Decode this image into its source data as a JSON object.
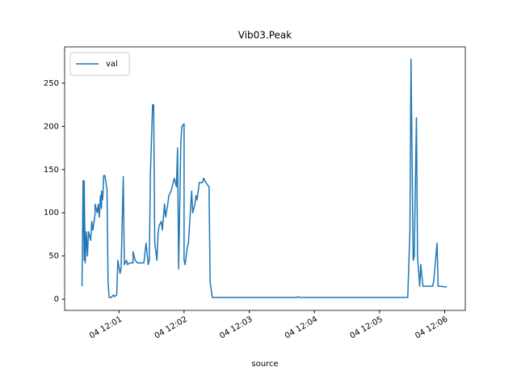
{
  "chart_data": {
    "type": "line",
    "title": "Vib03.Peak",
    "x_label": "source",
    "xlim": [
      "04 12:00:10",
      "04 12:06:19"
    ],
    "xticks": [
      "04 12:01",
      "04 12:02",
      "04 12:03",
      "04 12:04",
      "04 12:05",
      "04 12:06"
    ],
    "ylim": [
      -13,
      292
    ],
    "yticks": [
      0,
      50,
      100,
      150,
      200,
      250
    ],
    "legend": "upper left",
    "x": [
      "04 12:00:26",
      "04 12:00:27",
      "04 12:00:28",
      "04 12:00:28",
      "04 12:00:29",
      "04 12:00:30",
      "04 12:00:31",
      "04 12:00:32",
      "04 12:00:34",
      "04 12:00:35",
      "04 12:00:36",
      "04 12:00:38",
      "04 12:00:38",
      "04 12:00:40",
      "04 12:00:41",
      "04 12:00:42",
      "04 12:00:43",
      "04 12:00:44",
      "04 12:00:44",
      "04 12:00:45",
      "04 12:00:46",
      "04 12:00:47",
      "04 12:00:49",
      "04 12:00:50",
      "04 12:00:51",
      "04 12:00:53",
      "04 12:00:55",
      "04 12:00:56",
      "04 12:00:58",
      "04 12:00:59",
      "04 12:01:01",
      "04 12:01:02",
      "04 12:01:04",
      "04 12:01:05",
      "04 12:01:07",
      "04 12:01:08",
      "04 12:01:10",
      "04 12:01:13",
      "04 12:01:13",
      "04 12:01:15",
      "04 12:01:17",
      "04 12:01:23",
      "04 12:01:25",
      "04 12:01:27",
      "04 12:01:28",
      "04 12:01:29",
      "04 12:01:31",
      "04 12:01:32",
      "04 12:01:33",
      "04 12:01:35",
      "04 12:01:36",
      "04 12:01:37",
      "04 12:01:39",
      "04 12:01:40",
      "04 12:01:42",
      "04 12:01:43",
      "04 12:01:45",
      "04 12:01:46",
      "04 12:01:48",
      "04 12:01:50",
      "04 12:01:51",
      "04 12:01:53",
      "04 12:01:54",
      "04 12:01:55",
      "04 12:01:57",
      "04 12:01:58",
      "04 12:02:00",
      "04 12:02:00",
      "04 12:02:01",
      "04 12:02:03",
      "04 12:02:04",
      "04 12:02:06",
      "04 12:02:07",
      "04 12:02:08",
      "04 12:02:10",
      "04 12:02:11",
      "04 12:02:12",
      "04 12:02:14",
      "04 12:02:17",
      "04 12:02:18",
      "04 12:02:20",
      "04 12:02:23",
      "04 12:02:24",
      "04 12:02:26",
      "04 12:02:28",
      "04 12:02:54",
      "04 12:03:31",
      "04 12:03:44",
      "04 12:03:45",
      "04 12:03:46",
      "04 12:04:08",
      "04 12:04:46",
      "04 12:05:26",
      "04 12:05:28",
      "04 12:05:29",
      "04 12:05:31",
      "04 12:05:32",
      "04 12:05:34",
      "04 12:05:35",
      "04 12:05:37",
      "04 12:05:38",
      "04 12:05:40",
      "04 12:05:43",
      "04 12:05:49",
      "04 12:05:50",
      "04 12:05:53",
      "04 12:05:54",
      "04 12:05:56",
      "04 12:06:02"
    ],
    "series": [
      {
        "name": "val",
        "color": "#1f77b4",
        "values": [
          15,
          137,
          45,
          137,
          42,
          78,
          50,
          78,
          68,
          90,
          80,
          98,
          110,
          100,
          110,
          95,
          120,
          105,
          125,
          115,
          143,
          143,
          128,
          20,
          2,
          2,
          5,
          3,
          5,
          45,
          30,
          35,
          142,
          40,
          45,
          40,
          42,
          42,
          55,
          45,
          42,
          42,
          65,
          40,
          45,
          145,
          225,
          225,
          65,
          45,
          75,
          85,
          90,
          80,
          110,
          95,
          110,
          120,
          125,
          135,
          140,
          130,
          175,
          35,
          180,
          200,
          203,
          45,
          40,
          60,
          65,
          105,
          125,
          100,
          110,
          120,
          115,
          135,
          135,
          140,
          135,
          130,
          20,
          2,
          2,
          2,
          2,
          2,
          3,
          2,
          2,
          2,
          2,
          80,
          278,
          45,
          50,
          210,
          50,
          15,
          40,
          15,
          15,
          15,
          22,
          65,
          15,
          15,
          14
        ]
      }
    ]
  }
}
